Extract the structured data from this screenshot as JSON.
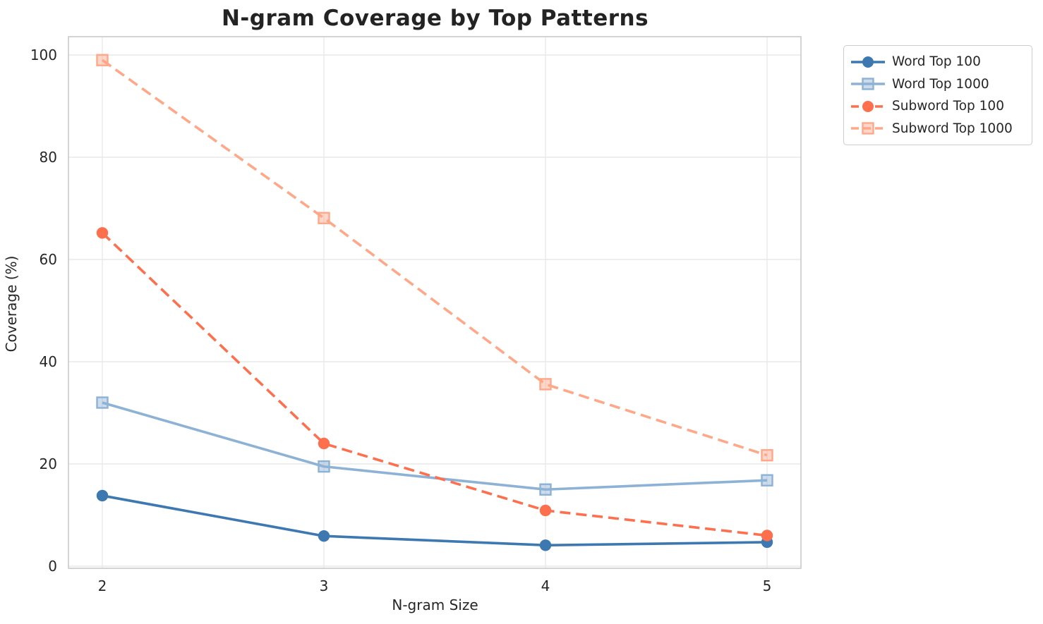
{
  "chart_data": {
    "type": "line",
    "title": "N-gram Coverage by Top Patterns",
    "xlabel": "N-gram Size",
    "ylabel": "Coverage (%)",
    "categories": [
      2,
      3,
      4,
      5
    ],
    "x_tick_labels": [
      "2",
      "3",
      "4",
      "5"
    ],
    "y_ticks": [
      0,
      20,
      40,
      60,
      80,
      100
    ],
    "y_tick_labels": [
      "0",
      "20",
      "40",
      "60",
      "80",
      "100"
    ],
    "ylim": [
      0,
      100
    ],
    "grid": true,
    "legend_position": "outside-top-right",
    "series": [
      {
        "name": "Word Top 100",
        "color": "#3d79b0",
        "marker": "circle",
        "line_style": "solid",
        "values": [
          13.8,
          5.9,
          4.1,
          4.7
        ]
      },
      {
        "name": "Word Top 1000",
        "color": "#8db2d5",
        "marker": "square",
        "line_style": "solid",
        "values": [
          32.0,
          19.5,
          15.0,
          16.8
        ]
      },
      {
        "name": "Subword Top 100",
        "color": "#fd6f4d",
        "marker": "circle",
        "line_style": "dashed",
        "values": [
          65.2,
          24.0,
          10.9,
          6.0
        ]
      },
      {
        "name": "Subword Top 1000",
        "color": "#ffa789",
        "marker": "square",
        "line_style": "dashed",
        "values": [
          99.0,
          68.1,
          35.6,
          21.7
        ]
      }
    ]
  }
}
